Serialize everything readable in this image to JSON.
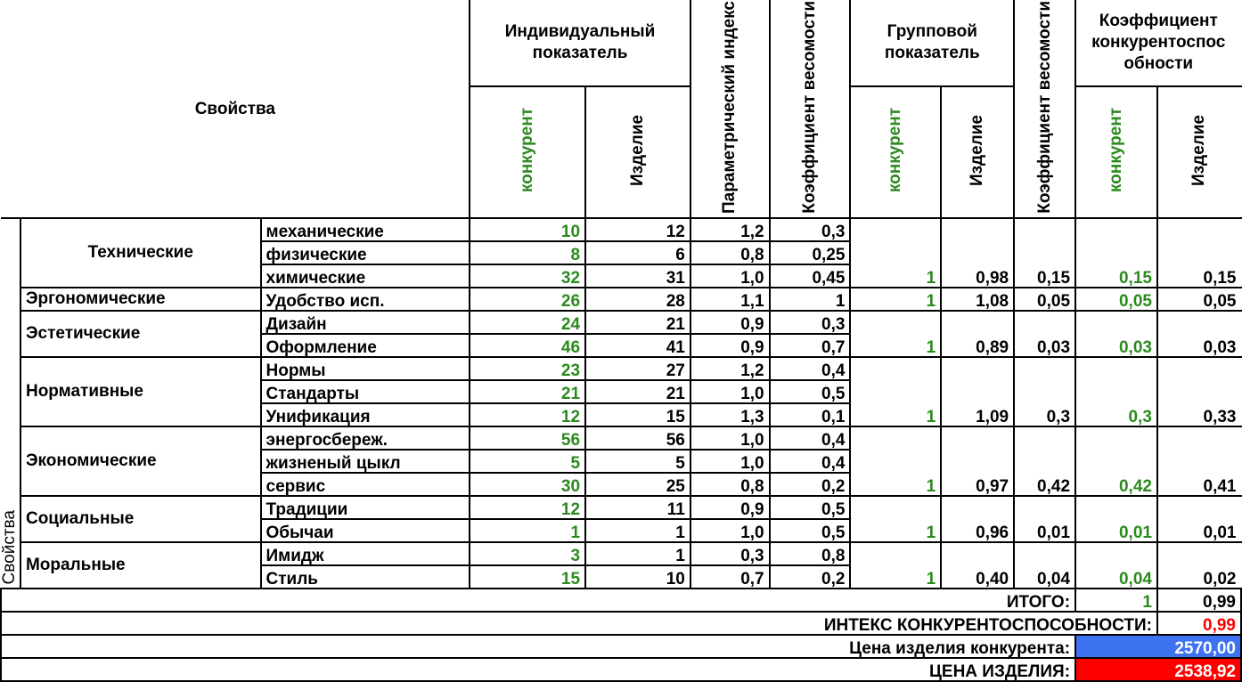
{
  "header": {
    "properties": "Свойства",
    "individual": "Индивидуальный показатель",
    "param_index": "Параметрический индекс",
    "weight_coef_1": "Коэффициент весомости",
    "group": "Групповой показатель",
    "weight_coef_2": "Коэффициент весомости",
    "competitiveness_coef": "Коэффициент конкурентоспос обности",
    "competitor": "конкурент",
    "product": "Изделие"
  },
  "side_label": "Свойства",
  "groups": [
    {
      "name": "Технические",
      "group_competitor": "1",
      "group_product": "0,98",
      "weight": "0,15",
      "coef_competitor": "0,15",
      "coef_product": "0,15",
      "rows": [
        {
          "name": "механические",
          "competitor": "10",
          "product": "12",
          "index": "1,2",
          "weight": "0,3"
        },
        {
          "name": "физические",
          "competitor": "8",
          "product": "6",
          "index": "0,8",
          "weight": "0,25"
        },
        {
          "name": "химические",
          "competitor": "32",
          "product": "31",
          "index": "1,0",
          "weight": "0,45"
        }
      ]
    },
    {
      "name": "Эргономические",
      "group_competitor": "1",
      "group_product": "1,08",
      "weight": "0,05",
      "coef_competitor": "0,05",
      "coef_product": "0,05",
      "rows": [
        {
          "name": "Удобство исп.",
          "competitor": "26",
          "product": "28",
          "index": "1,1",
          "weight": "1"
        }
      ]
    },
    {
      "name": "Эстетические",
      "group_competitor": "1",
      "group_product": "0,89",
      "weight": "0,03",
      "coef_competitor": "0,03",
      "coef_product": "0,03",
      "rows": [
        {
          "name": "Дизайн",
          "competitor": "24",
          "product": "21",
          "index": "0,9",
          "weight": "0,3"
        },
        {
          "name": "Оформление",
          "competitor": "46",
          "product": "41",
          "index": "0,9",
          "weight": "0,7"
        }
      ]
    },
    {
      "name": "Нормативные",
      "group_competitor": "1",
      "group_product": "1,09",
      "weight": "0,3",
      "coef_competitor": "0,3",
      "coef_product": "0,33",
      "rows": [
        {
          "name": "Нормы",
          "competitor": "23",
          "product": "27",
          "index": "1,2",
          "weight": "0,4"
        },
        {
          "name": "Стандарты",
          "competitor": "21",
          "product": "21",
          "index": "1,0",
          "weight": "0,5"
        },
        {
          "name": "Унификация",
          "competitor": "12",
          "product": "15",
          "index": "1,3",
          "weight": "0,1"
        }
      ]
    },
    {
      "name": "Экономические",
      "group_competitor": "1",
      "group_product": "0,97",
      "weight": "0,42",
      "coef_competitor": "0,42",
      "coef_product": "0,41",
      "rows": [
        {
          "name": "энергосбереж.",
          "competitor": "56",
          "product": "56",
          "index": "1,0",
          "weight": "0,4"
        },
        {
          "name": "жизненый цыкл",
          "competitor": "5",
          "product": "5",
          "index": "1,0",
          "weight": "0,4"
        },
        {
          "name": "сервис",
          "competitor": "30",
          "product": "25",
          "index": "0,8",
          "weight": "0,2"
        }
      ]
    },
    {
      "name": "Социальные",
      "group_competitor": "1",
      "group_product": "0,96",
      "weight": "0,01",
      "coef_competitor": "0,01",
      "coef_product": "0,01",
      "rows": [
        {
          "name": "Традиции",
          "competitor": "12",
          "product": "11",
          "index": "0,9",
          "weight": "0,5"
        },
        {
          "name": "Обычаи",
          "competitor": "1",
          "product": "1",
          "index": "1,0",
          "weight": "0,5"
        }
      ]
    },
    {
      "name": "Моральные",
      "group_competitor": "1",
      "group_product": "0,40",
      "weight": "0,04",
      "coef_competitor": "0,04",
      "coef_product": "0,02",
      "rows": [
        {
          "name": "Имидж",
          "competitor": "3",
          "product": "1",
          "index": "0,3",
          "weight": "0,8"
        },
        {
          "name": "Стиль",
          "competitor": "15",
          "product": "10",
          "index": "0,7",
          "weight": "0,2"
        }
      ]
    }
  ],
  "totals": {
    "itogo_label": "ИТОГО:",
    "itogo_competitor": "1",
    "itogo_product": "0,99",
    "index_label": "ИНТЕКС КОНКУРЕНТОСПОСОБНОСТИ:",
    "index_value": "0,99",
    "competitor_price_label": "Цена изделия конкурента:",
    "competitor_price": "2570,00",
    "product_price_label": "ЦЕНА ИЗДЕЛИЯ:",
    "product_price": "2538,92"
  },
  "colors": {
    "competitor_text": "#2b8a1e",
    "highlight_red": "#ff0000",
    "price_blue": "#3d72f0"
  }
}
